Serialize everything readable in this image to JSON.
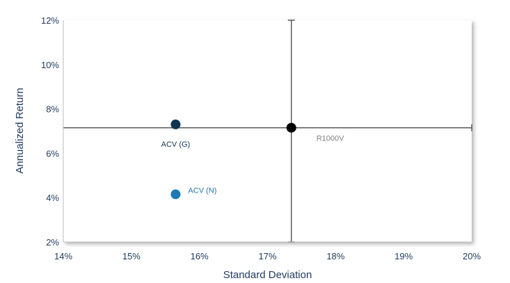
{
  "chart_data": {
    "type": "scatter",
    "xlabel": "Standard Deviation",
    "ylabel": "Annualized Return",
    "xlim": [
      14,
      20
    ],
    "ylim": [
      2,
      12
    ],
    "x_ticks": [
      "14%",
      "15%",
      "16%",
      "17%",
      "18%",
      "19%",
      "20%"
    ],
    "y_ticks": [
      "2%",
      "4%",
      "6%",
      "8%",
      "10%",
      "12%"
    ],
    "grid": false,
    "crosshair": {
      "x": 17.35,
      "y": 7.15
    },
    "points": [
      {
        "label": "ACV (G)",
        "x": 15.65,
        "y": 7.3,
        "color": "#0f3553",
        "label_position": "below"
      },
      {
        "label": "ACV (N)",
        "x": 15.65,
        "y": 4.15,
        "color": "#1f78b4",
        "label_position": "right"
      },
      {
        "label": "R1000V",
        "x": 17.35,
        "y": 7.15,
        "color": "#000000",
        "label_position": "below-right"
      }
    ]
  }
}
